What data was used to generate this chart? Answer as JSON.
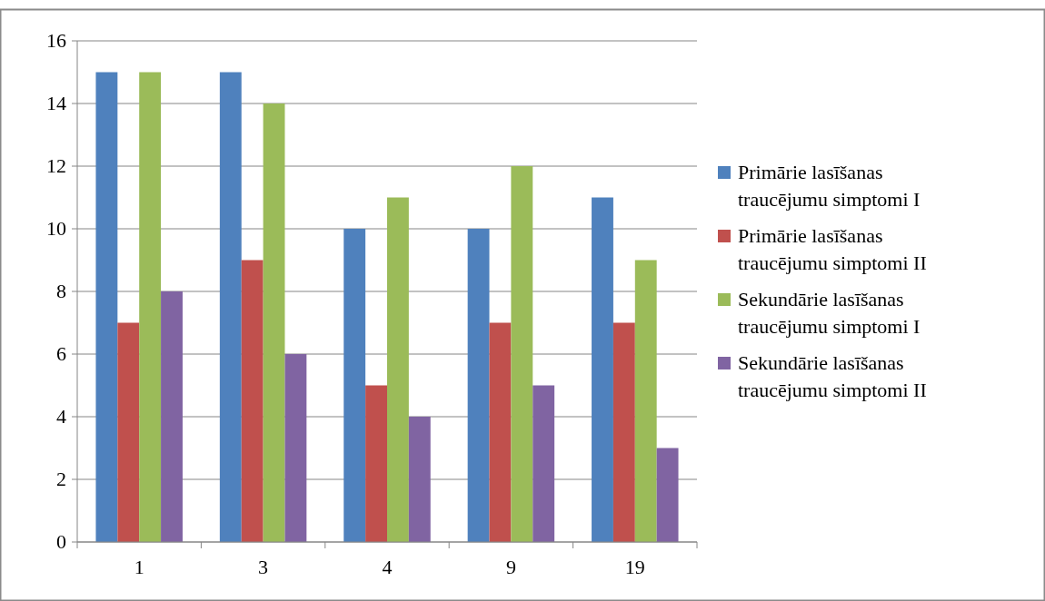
{
  "chart_data": {
    "type": "bar",
    "categories": [
      "1",
      "3",
      "4",
      "9",
      "19"
    ],
    "series": [
      {
        "name": "Primārie lasīšanas traucējumu simptomi I",
        "color": "#4f81bd",
        "values": [
          15,
          15,
          10,
          10,
          11
        ]
      },
      {
        "name": "Primārie lasīšanas traucējumu simptomi II",
        "color": "#c0504d",
        "values": [
          7,
          9,
          5,
          7,
          7
        ]
      },
      {
        "name": "Sekundārie lasīšanas traucējumu simptomi I",
        "color": "#9bbb59",
        "values": [
          15,
          14,
          11,
          12,
          9
        ]
      },
      {
        "name": "Sekundārie lasīšanas traucējumu simptomi II",
        "color": "#8064a2",
        "values": [
          8,
          6,
          4,
          5,
          3
        ]
      }
    ],
    "ylim": [
      0,
      16
    ],
    "yticks": [
      0,
      2,
      4,
      6,
      8,
      10,
      12,
      14,
      16
    ],
    "grid": "y",
    "legend": "right"
  }
}
